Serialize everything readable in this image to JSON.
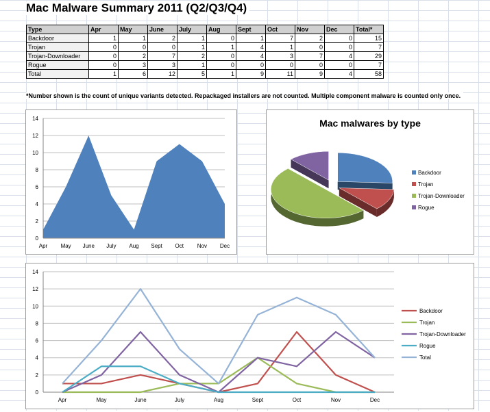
{
  "title": "Mac Malware Summary 2011 (Q2/Q3/Q4)",
  "table": {
    "headers": [
      "Type",
      "Apr",
      "May",
      "June",
      "July",
      "Aug",
      "Sept",
      "Oct",
      "Nov",
      "Dec",
      "Total*"
    ],
    "rows": [
      {
        "type": "Backdoor",
        "values": [
          1,
          1,
          2,
          1,
          0,
          1,
          7,
          2,
          0,
          15
        ]
      },
      {
        "type": "Trojan",
        "values": [
          0,
          0,
          0,
          1,
          1,
          4,
          1,
          0,
          0,
          7
        ]
      },
      {
        "type": "Trojan-Downloader",
        "values": [
          0,
          2,
          7,
          2,
          0,
          4,
          3,
          7,
          4,
          29
        ]
      },
      {
        "type": "Rogue",
        "values": [
          0,
          3,
          3,
          1,
          0,
          0,
          0,
          0,
          0,
          7
        ]
      },
      {
        "type": "Total",
        "values": [
          1,
          6,
          12,
          5,
          1,
          9,
          11,
          9,
          4,
          58
        ]
      }
    ]
  },
  "note": "*Number shown is the count of unique variants detected. Repackaged installers are not counted. Multiple component malware is counted only once.",
  "colors": {
    "Backdoor": "#4f81bd",
    "Trojan": "#c0504d",
    "Trojan-Downloader": "#9bbb59",
    "Rogue": "#8064a2",
    "area": "#4f81bd",
    "line_backdoor": "#c0504d",
    "line_trojan": "#9bbb59",
    "line_downloader": "#8064a2",
    "line_rogue": "#4bacc6",
    "line_total": "#95b3d7"
  },
  "chart_data": [
    {
      "type": "area",
      "categories": [
        "Apr",
        "May",
        "June",
        "July",
        "Aug",
        "Sept",
        "Oct",
        "Nov",
        "Dec"
      ],
      "series": [
        {
          "values": [
            1,
            6,
            12,
            5,
            1,
            9,
            11,
            9,
            4
          ]
        }
      ],
      "ylim": [
        0,
        14
      ],
      "yticks": [
        0,
        2,
        4,
        6,
        8,
        10,
        12,
        14
      ],
      "grid": true
    },
    {
      "type": "pie",
      "title": "Mac malwares by type",
      "labels": [
        "Backdoor",
        "Trojan",
        "Trojan-Downloader",
        "Rogue"
      ],
      "values": [
        15,
        7,
        29,
        7
      ],
      "legend": "right"
    },
    {
      "type": "line",
      "categories": [
        "Apr",
        "May",
        "June",
        "July",
        "Aug",
        "Sept",
        "Oct",
        "Nov",
        "Dec"
      ],
      "series": [
        {
          "name": "Backdoor",
          "values": [
            1,
            1,
            2,
            1,
            0,
            1,
            7,
            2,
            0
          ]
        },
        {
          "name": "Trojan",
          "values": [
            0,
            0,
            0,
            1,
            1,
            4,
            1,
            0,
            0
          ]
        },
        {
          "name": "Trojan-Downloader",
          "values": [
            0,
            2,
            7,
            2,
            0,
            4,
            3,
            7,
            4
          ]
        },
        {
          "name": "Rogue",
          "values": [
            0,
            3,
            3,
            1,
            0,
            0,
            0,
            0,
            0
          ]
        },
        {
          "name": "Total",
          "values": [
            1,
            6,
            12,
            5,
            1,
            9,
            11,
            9,
            4
          ]
        }
      ],
      "ylim": [
        0,
        14
      ],
      "yticks": [
        0,
        2,
        4,
        6,
        8,
        10,
        12,
        14
      ],
      "grid": true,
      "legend": "right"
    }
  ]
}
